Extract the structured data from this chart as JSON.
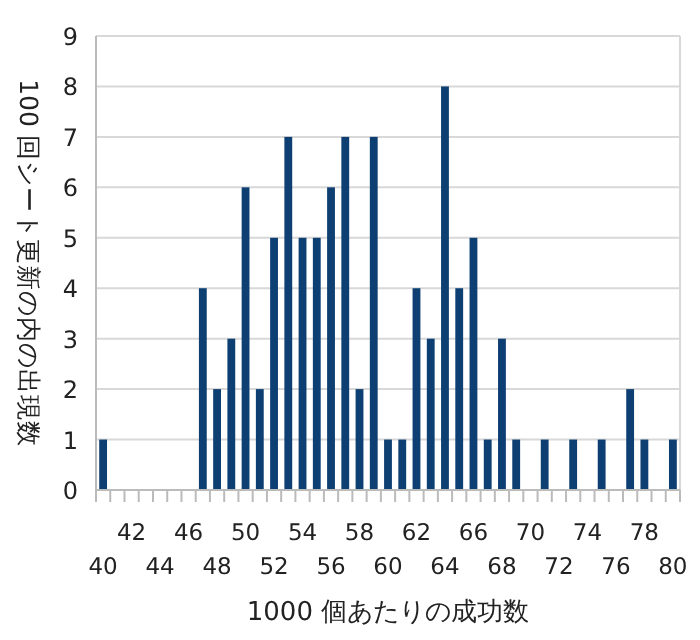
{
  "chart_data": {
    "type": "bar",
    "xlabel": "1000 個あたりの成功数",
    "ylabel": "100 回シート更新の内の出現数",
    "categories": [
      "40",
      null,
      "42",
      null,
      "44",
      null,
      "46",
      null,
      "48",
      null,
      "50",
      null,
      "52",
      null,
      "54",
      null,
      "56",
      null,
      "58",
      null,
      "60",
      null,
      "62",
      null,
      "64",
      null,
      "66",
      null,
      "68",
      null,
      "70",
      null,
      "72",
      null,
      "74",
      null,
      "76",
      null,
      "78",
      null,
      "80"
    ],
    "values": [
      1,
      0,
      0,
      0,
      0,
      0,
      0,
      4,
      2,
      3,
      6,
      2,
      5,
      7,
      5,
      5,
      6,
      7,
      2,
      7,
      1,
      1,
      4,
      3,
      8,
      4,
      5,
      1,
      3,
      1,
      0,
      1,
      0,
      1,
      0,
      1,
      0,
      2,
      1,
      0,
      1
    ],
    "color": "#0e3f72",
    "ylim": [
      0,
      9
    ],
    "yticks": [
      0,
      1,
      2,
      3,
      4,
      5,
      6,
      7,
      8,
      9
    ],
    "grid": "y"
  }
}
